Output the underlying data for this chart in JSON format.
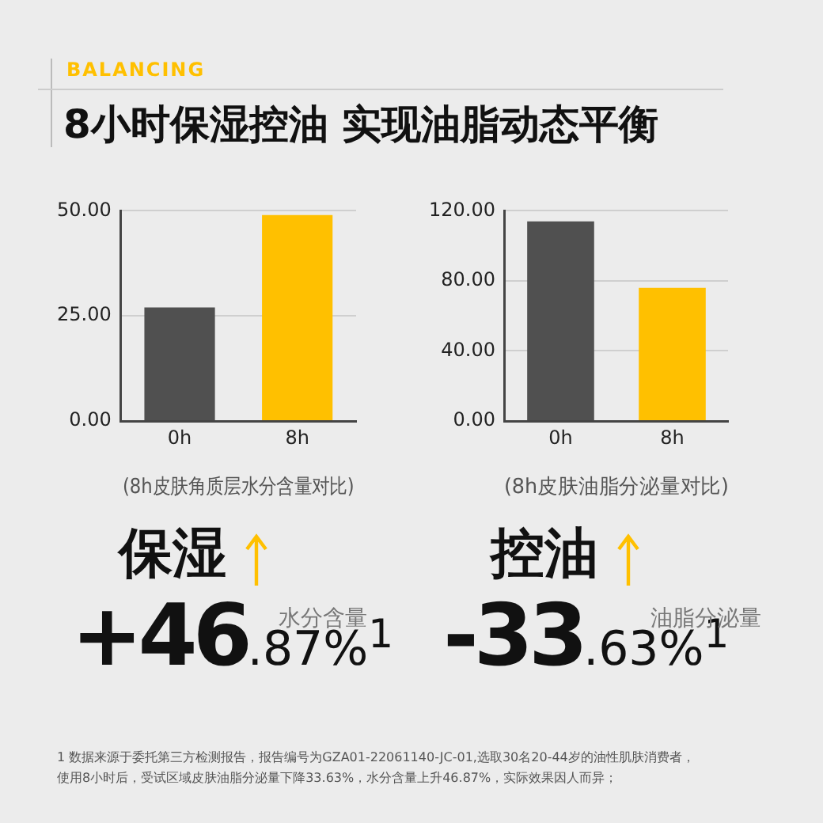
{
  "chart_data": [
    {
      "type": "bar",
      "subtitle": "BALANCING",
      "title": "8小时保湿控油 实现油脂动态平衡",
      "xlabel": "(8h皮肤角质层水分含量对比)",
      "categories": [
        "0h",
        "8h"
      ],
      "values": [
        27,
        49
      ],
      "colors": [
        "#505050",
        "#ffc000"
      ],
      "ylim": [
        0,
        50
      ],
      "yticks": [
        {
          "value": 0,
          "label": "0.00"
        },
        {
          "value": 25,
          "label": "25.00"
        },
        {
          "value": 50,
          "label": "50.00"
        }
      ],
      "grid": "y",
      "annotations": [
        "保湿",
        "+46.87%$^{1}$",
        "水分含量"
      ]
    },
    {
      "type": "bar",
      "xlabel": "(8h皮肤油脂分泌量对比)",
      "categories": [
        "0h",
        "8h"
      ],
      "values": [
        114,
        76
      ],
      "colors": [
        "#505050",
        "#ffc000"
      ],
      "ylim": [
        0,
        120
      ],
      "yticks": [
        {
          "value": 0,
          "label": "0.00"
        },
        {
          "value": 40,
          "label": "40.00"
        },
        {
          "value": 80,
          "label": "80.00"
        },
        {
          "value": 120,
          "label": "120.00"
        }
      ],
      "grid": "y",
      "annotations": [
        "控油",
        "-33.63%$^{1}$",
        "油脂分泌量",
        "1 数据来源于委托第三方检测报告，报告编号为GZA01-22061140-JC-01,选取30名20-44岁的油性肌肤消费者，",
        "使用8小时后，受试区域皮肤油脂分泌量下降33.63%，水分含量上升46.87%，实际效果因人而异；"
      ]
    }
  ]
}
